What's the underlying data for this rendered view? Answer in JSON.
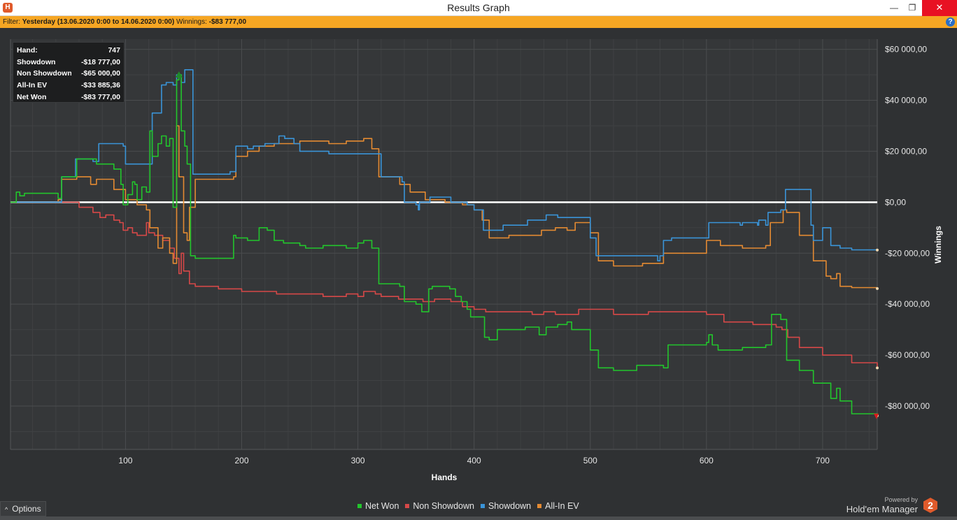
{
  "window": {
    "title": "Results Graph",
    "icon": "hm2-logo-icon",
    "minimize": "—",
    "maximize": "❐",
    "close": "✕"
  },
  "filter": {
    "prefix": "Filter:",
    "range": "Yesterday (13.06.2020 0:00 to 14.06.2020 0:00)",
    "winnings_label": "Winnings:",
    "winnings_value": "-$83 777,00",
    "help": "?"
  },
  "stats": [
    {
      "label": "Hand:",
      "value": "747"
    },
    {
      "label": "Showdown",
      "value": "-$18 777,00"
    },
    {
      "label": "Non Showdown",
      "value": "-$65 000,00"
    },
    {
      "label": "All-In EV",
      "value": "-$33 885,36"
    },
    {
      "label": "Net Won",
      "value": "-$83 777,00"
    }
  ],
  "options_label": "Options",
  "brand": {
    "powered": "Powered by",
    "name": "Hold'em Manager",
    "logo_text": "2"
  },
  "colors": {
    "net_won": "#22c52c",
    "non_showdown": "#d64848",
    "showdown": "#3a94d8",
    "allin_ev": "#e48a32",
    "zero_line": "#ffffff",
    "filter_bar": "#f6a623"
  },
  "chart_data": {
    "type": "line",
    "xlabel": "Hands",
    "ylabel": "Winnings",
    "xlim": [
      1,
      747
    ],
    "ylim": [
      -97000,
      64000
    ],
    "xticks": [
      100,
      200,
      300,
      400,
      500,
      600,
      700
    ],
    "xtick_labels": [
      "100",
      "200",
      "300",
      "400",
      "500",
      "600",
      "700"
    ],
    "yticks": [
      60000,
      40000,
      20000,
      0,
      -20000,
      -40000,
      -60000,
      -80000
    ],
    "ytick_labels": [
      "$60 000,00",
      "$40 000,00",
      "$20 000,00",
      "$0,00",
      "-$20 000,00",
      "-$40 000,00",
      "-$60 000,00",
      "-$80 000,00"
    ],
    "grid": true,
    "legend_position": "bottom",
    "series": [
      {
        "name": "Net Won",
        "color": "#22c52c",
        "x": [
          1,
          6,
          9,
          13,
          42,
          45,
          58,
          75,
          90,
          96,
          98,
          102,
          106,
          108,
          110,
          114,
          118,
          121,
          123,
          128,
          131,
          135,
          138,
          141,
          144,
          146,
          148,
          151,
          153,
          156,
          160,
          178,
          193,
          195,
          205,
          215,
          222,
          228,
          236,
          250,
          255,
          270,
          290,
          300,
          305,
          312,
          318,
          336,
          340,
          350,
          355,
          361,
          364,
          379,
          384,
          389,
          394,
          397,
          409,
          413,
          420,
          429,
          444,
          456,
          462,
          472,
          480,
          484,
          500,
          507,
          520,
          540,
          563,
          567,
          579,
          600,
          602,
          605,
          610,
          631,
          644,
          651,
          656,
          664,
          669,
          680,
          692,
          707,
          712,
          715,
          725,
          747
        ],
        "y": [
          0,
          4000,
          2500,
          3500,
          1500,
          10000,
          17000,
          15000,
          13000,
          7000,
          -1000,
          3000,
          8000,
          7000,
          1000,
          6000,
          4000,
          28000,
          18000,
          23000,
          26000,
          22000,
          25000,
          -2000,
          48000,
          50000,
          28000,
          22000,
          15000,
          -21000,
          -22000,
          -22000,
          -13000,
          -14000,
          -15000,
          -10000,
          -11000,
          -15000,
          -16000,
          -17000,
          -18000,
          -17000,
          -18000,
          -16000,
          -15000,
          -18000,
          -32000,
          -33000,
          -39000,
          -40000,
          -43000,
          -34000,
          -33000,
          -34000,
          -37000,
          -39000,
          -42000,
          -45000,
          -53000,
          -54000,
          -50000,
          -50000,
          -49000,
          -52000,
          -49000,
          -48000,
          -47000,
          -50000,
          -58000,
          -65000,
          -66000,
          -64000,
          -65000,
          -56000,
          -56000,
          -55000,
          -52000,
          -56000,
          -58000,
          -57000,
          -57000,
          -56000,
          -44000,
          -46000,
          -62000,
          -66000,
          -71000,
          -77000,
          -73000,
          -78000,
          -83000,
          -83777
        ]
      },
      {
        "name": "Non Showdown",
        "color": "#d64848",
        "x": [
          1,
          42,
          60,
          72,
          78,
          83,
          90,
          95,
          98,
          102,
          106,
          110,
          118,
          120,
          125,
          132,
          138,
          142,
          146,
          148,
          150,
          155,
          160,
          180,
          200,
          230,
          255,
          270,
          290,
          300,
          305,
          310,
          315,
          320,
          335,
          356,
          366,
          380,
          390,
          400,
          410,
          430,
          450,
          460,
          470,
          480,
          490,
          500,
          520,
          550,
          600,
          615,
          640,
          660,
          665,
          670,
          680,
          700,
          725,
          747
        ],
        "y": [
          0,
          0,
          -2000,
          -4000,
          -6000,
          -5000,
          -7000,
          -8000,
          -11000,
          -10000,
          -12000,
          -13000,
          -8000,
          -12000,
          -13000,
          -15000,
          -18000,
          -22000,
          -28000,
          -20000,
          -27000,
          -32000,
          -33000,
          -34000,
          -35000,
          -36000,
          -36000,
          -37000,
          -36000,
          -37000,
          -35000,
          -35000,
          -36000,
          -37000,
          -38000,
          -39000,
          -38000,
          -39000,
          -41000,
          -42000,
          -43000,
          -43000,
          -44000,
          -43000,
          -44000,
          -44000,
          -42000,
          -42000,
          -44000,
          -43000,
          -44000,
          -47000,
          -48000,
          -49000,
          -50000,
          -53000,
          -57000,
          -60000,
          -63000,
          -65000
        ]
      },
      {
        "name": "Showdown",
        "color": "#3a94d8",
        "x": [
          1,
          42,
          45,
          57,
          72,
          77,
          98,
          100,
          120,
          123,
          131,
          135,
          141,
          144,
          148,
          151,
          155,
          158,
          170,
          190,
          195,
          205,
          210,
          220,
          232,
          237,
          245,
          250,
          275,
          310,
          320,
          338,
          340,
          345,
          350,
          352,
          353,
          357,
          362,
          380,
          392,
          394,
          400,
          408,
          413,
          425,
          440,
          446,
          456,
          462,
          472,
          480,
          500,
          505,
          520,
          540,
          558,
          560,
          563,
          570,
          600,
          602,
          605,
          610,
          629,
          631,
          644,
          645,
          651,
          653,
          655,
          664,
          668,
          690,
          692,
          699,
          700,
          707,
          715,
          725,
          747
        ],
        "y": [
          0,
          0,
          10000,
          17000,
          16000,
          23000,
          22000,
          15000,
          15000,
          35000,
          46000,
          47000,
          46000,
          50000,
          47000,
          52000,
          52000,
          11000,
          11000,
          12000,
          22000,
          21000,
          22000,
          23000,
          26000,
          25000,
          23000,
          20000,
          19000,
          19000,
          10000,
          8000,
          0,
          0,
          -1000,
          -3000,
          0,
          0,
          2000,
          0,
          0,
          -1000,
          -3000,
          -11000,
          -11000,
          -9000,
          -9000,
          -7000,
          -7000,
          -5000,
          -6000,
          -6000,
          -14000,
          -21000,
          -21000,
          -21000,
          -23000,
          -21000,
          -15000,
          -14000,
          -14000,
          -8000,
          -8000,
          -8000,
          -9000,
          -8000,
          -9000,
          -7000,
          -9000,
          -4000,
          -4000,
          -3000,
          5000,
          -9000,
          -15000,
          -15000,
          -10000,
          -17000,
          -18000,
          -18700,
          -18777
        ]
      },
      {
        "name": "All-In EV",
        "color": "#e48a32",
        "x": [
          1,
          42,
          45,
          58,
          70,
          75,
          90,
          100,
          110,
          118,
          121,
          128,
          132,
          138,
          141,
          144,
          146,
          150,
          153,
          155,
          160,
          175,
          193,
          195,
          205,
          215,
          228,
          236,
          250,
          260,
          275,
          290,
          300,
          305,
          312,
          318,
          336,
          345,
          358,
          375,
          390,
          400,
          407,
          413,
          420,
          430,
          444,
          458,
          470,
          480,
          487,
          500,
          507,
          520,
          545,
          560,
          563,
          579,
          600,
          605,
          612,
          631,
          640,
          651,
          655,
          660,
          666,
          669,
          680,
          692,
          703,
          707,
          712,
          715,
          725,
          747
        ],
        "y": [
          0,
          1000,
          9000,
          10000,
          7000,
          9000,
          5000,
          1000,
          -1000,
          -3000,
          -10000,
          -18000,
          -14000,
          -20000,
          -24000,
          30000,
          10000,
          -12000,
          -15000,
          -2000,
          9000,
          9000,
          10000,
          18000,
          20000,
          22000,
          23000,
          23000,
          24000,
          24000,
          23000,
          24000,
          24000,
          25000,
          21000,
          10000,
          7000,
          4000,
          1000,
          0,
          -1000,
          -3000,
          -7000,
          -14000,
          -14000,
          -13000,
          -13000,
          -11000,
          -10000,
          -11000,
          -8000,
          -12000,
          -23000,
          -25000,
          -24000,
          -24000,
          -20000,
          -20000,
          -15000,
          -15000,
          -17000,
          -18000,
          -18000,
          -17000,
          -8000,
          -8000,
          -3000,
          -4000,
          -13000,
          -23000,
          -29000,
          -30000,
          -28000,
          -33000,
          -33500,
          -33885
        ]
      }
    ]
  }
}
